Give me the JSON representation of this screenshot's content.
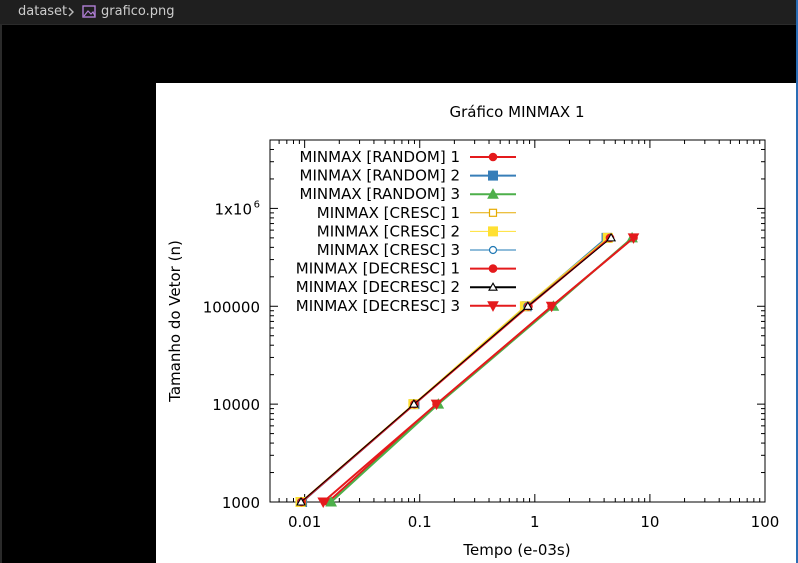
{
  "breadcrumb": {
    "folder": "dataset",
    "separator_icon": "chevron-right-icon",
    "file_icon": "image-file-icon",
    "file": "grafico.png"
  },
  "chart_data": {
    "type": "line",
    "title": "Gráfico MINMAX 1",
    "xlabel": "Tempo (e-03s)",
    "ylabel": "Tamanho do Vetor (n)",
    "xscale": "log",
    "yscale": "log",
    "xlim": [
      0.005,
      100
    ],
    "ylim": [
      1000,
      5000000
    ],
    "xticks": [
      0.01,
      0.1,
      1,
      10,
      100
    ],
    "xtick_labels": [
      "0.01",
      "0.1",
      "1",
      "10",
      "100"
    ],
    "yticks": [
      1000,
      10000,
      100000,
      1000000
    ],
    "ytick_labels": [
      "1000",
      "10000",
      "100000",
      "1x10"
    ],
    "ytick_superscripts": [
      "",
      "",
      "",
      "6"
    ],
    "grid": false,
    "legend_position": "top-left",
    "series": [
      {
        "name": "MINMAX [RANDOM] 1",
        "color": "#e41a1c",
        "marker": "circle-filled",
        "x": [
          0.016,
          0.14,
          1.4,
          7.2
        ],
        "y": [
          1000,
          10000,
          100000,
          500000
        ]
      },
      {
        "name": "MINMAX [RANDOM] 2",
        "color": "#377eb8",
        "marker": "square-filled",
        "x": [
          0.0095,
          0.09,
          0.85,
          4.2
        ],
        "y": [
          1000,
          10000,
          100000,
          500000
        ]
      },
      {
        "name": "MINMAX [RANDOM] 3",
        "color": "#4daf4a",
        "marker": "triangle-filled",
        "x": [
          0.017,
          0.145,
          1.45,
          7.0
        ],
        "y": [
          1000,
          10000,
          100000,
          500000
        ]
      },
      {
        "name": "MINMAX [CRESC] 1",
        "color": "#e6ab02",
        "marker": "square-open",
        "x": [
          0.0095,
          0.088,
          0.85,
          4.4
        ],
        "y": [
          1000,
          10000,
          100000,
          500000
        ]
      },
      {
        "name": "MINMAX [CRESC] 2",
        "color": "#ffe033",
        "marker": "square-filled",
        "x": [
          0.0092,
          0.088,
          0.82,
          4.3
        ],
        "y": [
          1000,
          10000,
          100000,
          500000
        ]
      },
      {
        "name": "MINMAX [CRESC] 3",
        "color": "#1f78b4",
        "marker": "circle-open",
        "x": [
          0.0093,
          0.09,
          0.86,
          4.5
        ],
        "y": [
          1000,
          10000,
          100000,
          500000
        ]
      },
      {
        "name": "MINMAX [DECRESC] 1",
        "color": "#e41a1c",
        "marker": "circle-filled",
        "x": [
          0.0094,
          0.09,
          0.88,
          4.5
        ],
        "y": [
          1000,
          10000,
          100000,
          500000
        ]
      },
      {
        "name": "MINMAX [DECRESC] 2",
        "color": "#000000",
        "marker": "triangle-open",
        "x": [
          0.0093,
          0.089,
          0.87,
          4.6
        ],
        "y": [
          1000,
          10000,
          100000,
          500000
        ]
      },
      {
        "name": "MINMAX [DECRESC] 3",
        "color": "#e41a1c",
        "marker": "triangle-down-filled",
        "x": [
          0.0145,
          0.14,
          1.4,
          7.2
        ],
        "y": [
          1000,
          10000,
          100000,
          500000
        ]
      }
    ]
  }
}
